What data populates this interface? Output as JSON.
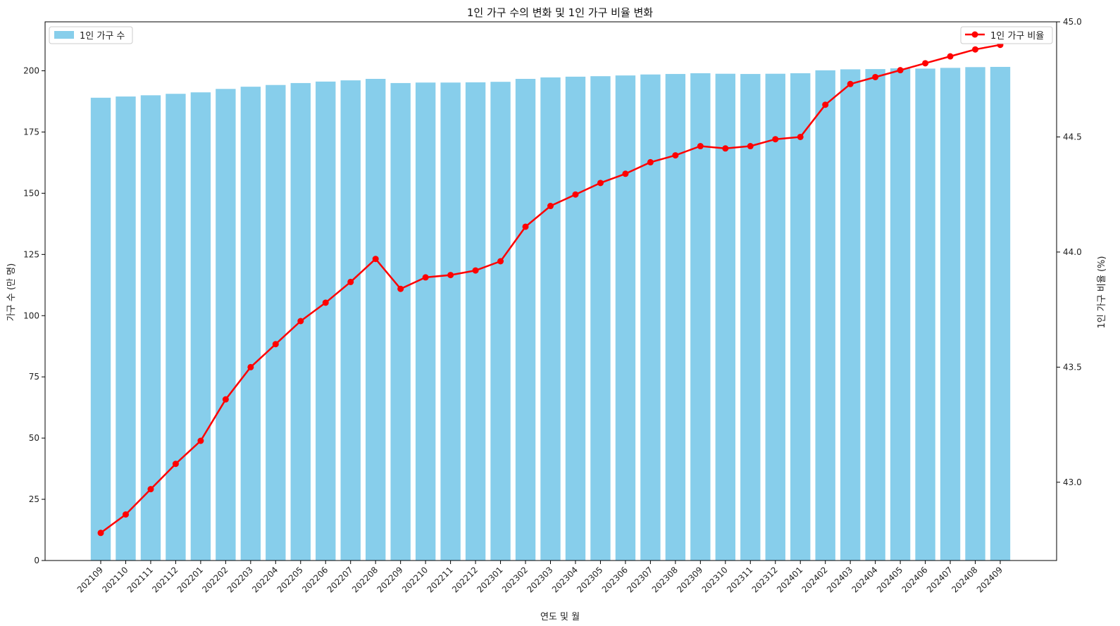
{
  "chart_data": {
    "type": "bar+line",
    "title": "1인 가구 수의 변화 및 1인 가구 비율 변화",
    "xlabel": "연도 및 월",
    "ylabel_left": "가구 수 (만 명)",
    "ylabel_right": "1인 가구 비율 (%)",
    "categories": [
      "202109",
      "202110",
      "202111",
      "202112",
      "202201",
      "202202",
      "202203",
      "202204",
      "202205",
      "202206",
      "202207",
      "202208",
      "202209",
      "202210",
      "202211",
      "202212",
      "202301",
      "202302",
      "202303",
      "202304",
      "202305",
      "202306",
      "202307",
      "202308",
      "202309",
      "202310",
      "202311",
      "202312",
      "202401",
      "202402",
      "202403",
      "202404",
      "202405",
      "202406",
      "202407",
      "202408",
      "202409"
    ],
    "left_axis": {
      "ylim": [
        0,
        220
      ],
      "ticks": [
        0,
        25,
        50,
        75,
        100,
        125,
        150,
        175,
        200
      ]
    },
    "right_axis": {
      "ylim": [
        42.66,
        45.0
      ],
      "ticks": [
        43.0,
        43.5,
        44.0,
        44.5,
        45.0
      ],
      "tick_labels": [
        "43.0",
        "43.5",
        "44.0",
        "44.5",
        "45.0"
      ]
    },
    "series": [
      {
        "name": "1인 가구 수",
        "type": "bar",
        "axis": "left",
        "color": "#87CEEB",
        "values": [
          189.0,
          189.5,
          190.0,
          190.6,
          191.2,
          192.6,
          193.5,
          194.2,
          195.0,
          195.6,
          196.1,
          196.7,
          195.0,
          195.2,
          195.2,
          195.3,
          195.5,
          196.7,
          197.3,
          197.6,
          197.8,
          198.1,
          198.5,
          198.7,
          199.0,
          198.8,
          198.7,
          198.8,
          199.0,
          200.2,
          200.6,
          200.7,
          201.0,
          200.9,
          201.2,
          201.5,
          201.6
        ]
      },
      {
        "name": "1인 가구 비율",
        "type": "line",
        "axis": "right",
        "color": "#FF0000",
        "values": [
          42.78,
          42.86,
          42.97,
          43.08,
          43.18,
          43.36,
          43.5,
          43.6,
          43.7,
          43.78,
          43.87,
          43.97,
          43.84,
          43.89,
          43.9,
          43.92,
          43.96,
          44.11,
          44.2,
          44.25,
          44.3,
          44.34,
          44.39,
          44.42,
          44.46,
          44.45,
          44.46,
          44.49,
          44.5,
          44.64,
          44.73,
          44.76,
          44.79,
          44.82,
          44.85,
          44.88,
          44.9
        ]
      }
    ],
    "legend_left": {
      "label": "1인 가구 수",
      "placement": "top-left"
    },
    "legend_right": {
      "label": "1인 가구 비율",
      "placement": "top-right"
    }
  }
}
